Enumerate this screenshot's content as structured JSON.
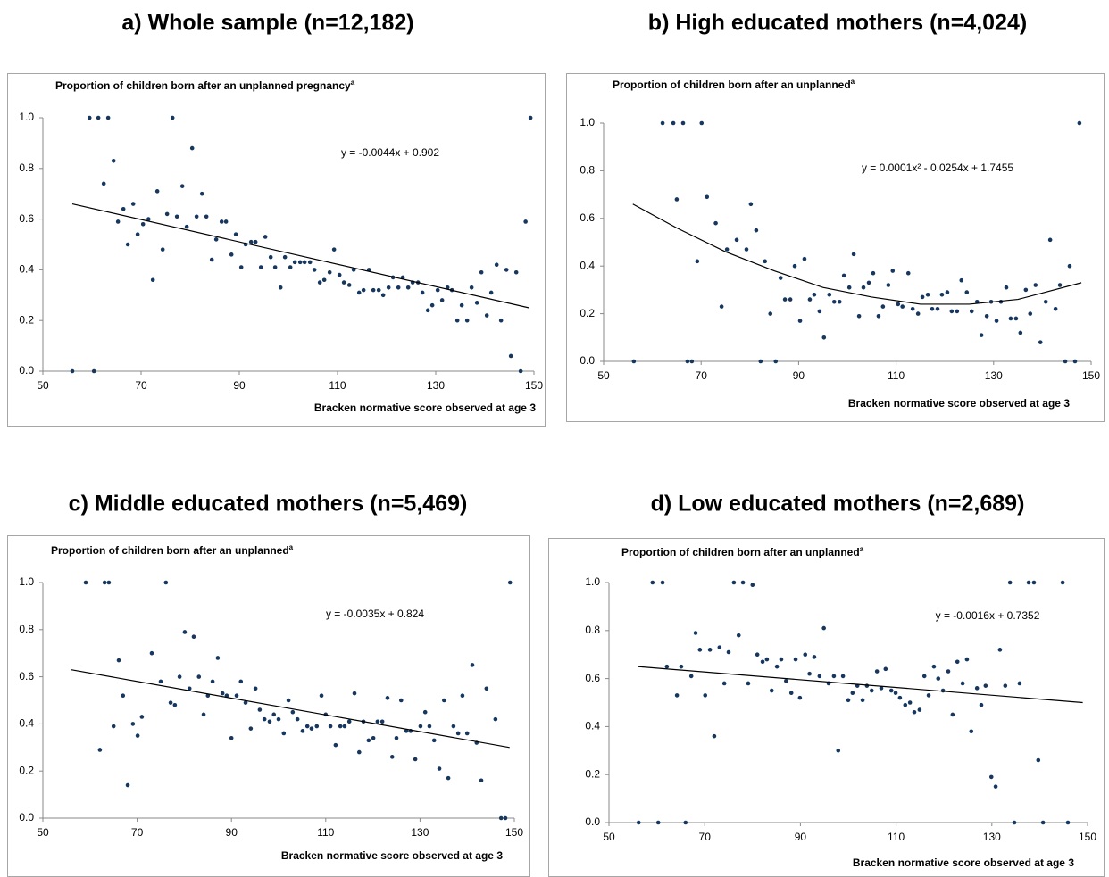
{
  "chart_data": [
    {
      "type": "scatter",
      "title": "a) Whole sample (n=12,182)",
      "y_label": "Proportion of children born after an unplanned pregnancy",
      "y_label_superscript": "a",
      "x_label": "Bracken normative score observed at age 3",
      "color": "#17375e",
      "x": [
        56,
        59.5,
        60.4,
        61.3,
        62.4,
        63.3,
        64.4,
        65.3,
        66.4,
        67.3,
        68.4,
        69.3,
        70.4,
        71.5,
        72.4,
        73.3,
        74.4,
        75.3,
        76.4,
        77.3,
        78.4,
        79.3,
        80.4,
        81.3,
        82.4,
        83.3,
        84.4,
        85.3,
        86.4,
        87.3,
        88.4,
        89.3,
        90.4,
        91.3,
        92.4,
        93.3,
        94.4,
        95.3,
        96.4,
        97.3,
        98.4,
        99.3,
        100.4,
        101.3,
        102.4,
        103.3,
        104.4,
        105.3,
        106.4,
        107.3,
        108.4,
        109.3,
        110.4,
        111.3,
        112.4,
        113.3,
        114.4,
        115.3,
        116.4,
        117.3,
        118.4,
        119.3,
        120.4,
        121.3,
        122.4,
        123.3,
        124.4,
        125.3,
        126.4,
        127.3,
        128.4,
        129.3,
        130.4,
        131.3,
        132.4,
        133.3,
        134.4,
        135.3,
        136.4,
        137.3,
        138.4,
        139.3,
        140.4,
        141.3,
        142.4,
        143.3,
        144.4,
        145.3,
        146.4,
        147.3,
        148.3,
        149.3
      ],
      "y": [
        0,
        1,
        0,
        1,
        0.74,
        1,
        0.83,
        0.59,
        0.64,
        0.5,
        0.66,
        0.54,
        0.58,
        0.6,
        0.36,
        0.71,
        0.48,
        0.62,
        1,
        0.61,
        0.73,
        0.57,
        0.88,
        0.61,
        0.7,
        0.61,
        0.44,
        0.52,
        0.59,
        0.59,
        0.46,
        0.54,
        0.41,
        0.5,
        0.51,
        0.51,
        0.41,
        0.53,
        0.45,
        0.41,
        0.33,
        0.45,
        0.41,
        0.43,
        0.43,
        0.43,
        0.43,
        0.4,
        0.35,
        0.36,
        0.39,
        0.48,
        0.38,
        0.35,
        0.34,
        0.4,
        0.31,
        0.32,
        0.4,
        0.32,
        0.32,
        0.3,
        0.33,
        0.37,
        0.33,
        0.37,
        0.33,
        0.35,
        0.35,
        0.31,
        0.24,
        0.26,
        0.32,
        0.28,
        0.33,
        0.32,
        0.2,
        0.26,
        0.2,
        0.33,
        0.27,
        0.39,
        0.22,
        0.31,
        0.42,
        0.2,
        0.4,
        0.06,
        0.39,
        0,
        0.59,
        1
      ],
      "trendline": {
        "label": "y = -0.0044x + 0.902",
        "color": "#000000",
        "x": [
          56,
          149
        ],
        "y": [
          0.66,
          0.25
        ]
      },
      "xlim": [
        50,
        150
      ],
      "ylim": [
        0,
        1
      ],
      "xticks": [
        50,
        70,
        90,
        110,
        130,
        150
      ],
      "yticks": [
        {
          "value": 0,
          "label": "0.0"
        },
        0.2,
        0.4,
        0.6,
        0.8,
        {
          "value": 1,
          "label": "1.0"
        }
      ]
    },
    {
      "type": "scatter",
      "title": "b) High educated mothers (n=4,024)",
      "y_label": "Proportion of children born after an unplanned",
      "y_label_superscript": "a",
      "x_label": "Bracken normative score observed at age 3",
      "color": "#17375e",
      "x": [
        56.2,
        62.1,
        64.3,
        65,
        66.3,
        67.2,
        68.1,
        69.2,
        70.1,
        71.2,
        73,
        74.2,
        75.3,
        77.3,
        79.3,
        80.2,
        81.3,
        82.2,
        83.1,
        84.2,
        85.3,
        86.3,
        87.2,
        88.3,
        89.2,
        90.3,
        91.2,
        92.3,
        93.2,
        94.3,
        95.2,
        96.3,
        97.3,
        98.4,
        99.3,
        100.4,
        101.3,
        102.4,
        103.3,
        104.4,
        105.3,
        106.4,
        107.3,
        108.4,
        109.3,
        110.4,
        111.3,
        112.5,
        113.4,
        114.5,
        115.4,
        116.5,
        117.4,
        118.5,
        119.4,
        120.5,
        121.4,
        122.5,
        123.4,
        124.5,
        125.5,
        126.6,
        127.5,
        128.6,
        129.5,
        130.6,
        131.5,
        132.6,
        133.5,
        134.6,
        135.5,
        136.6,
        137.5,
        138.6,
        139.6,
        140.7,
        141.6,
        142.7,
        143.6,
        144.7,
        145.6,
        146.7,
        147.6
      ],
      "y": [
        0,
        1,
        1,
        0.68,
        1,
        0,
        0,
        0.42,
        1,
        0.69,
        0.58,
        0.23,
        0.47,
        0.51,
        0.47,
        0.66,
        0.55,
        0,
        0.42,
        0.2,
        0,
        0.35,
        0.26,
        0.26,
        0.4,
        0.17,
        0.43,
        0.26,
        0.28,
        0.21,
        0.1,
        0.28,
        0.25,
        0.25,
        0.36,
        0.31,
        0.45,
        0.19,
        0.31,
        0.33,
        0.37,
        0.19,
        0.23,
        0.32,
        0.38,
        0.24,
        0.23,
        0.37,
        0.22,
        0.2,
        0.27,
        0.28,
        0.22,
        0.22,
        0.28,
        0.29,
        0.21,
        0.21,
        0.34,
        0.29,
        0.21,
        0.25,
        0.11,
        0.19,
        0.25,
        0.17,
        0.25,
        0.31,
        0.18,
        0.18,
        0.12,
        0.3,
        0.2,
        0.32,
        0.08,
        0.25,
        0.51,
        0.22,
        0.32,
        0,
        0.4,
        0,
        1
      ],
      "trendline": {
        "label": "y = 0.0001x² - 0.0254x + 1.7455",
        "color": "#000000",
        "x": [
          56,
          65,
          75,
          85,
          95,
          105,
          115,
          125,
          135,
          148
        ],
        "y": [
          0.66,
          0.56,
          0.46,
          0.38,
          0.31,
          0.27,
          0.24,
          0.24,
          0.26,
          0.33
        ]
      },
      "xlim": [
        50,
        150
      ],
      "ylim": [
        0,
        1
      ],
      "xticks": [
        50,
        70,
        90,
        110,
        130,
        150
      ],
      "yticks": [
        {
          "value": 0,
          "label": "0.0"
        },
        0.2,
        0.4,
        0.6,
        0.8,
        {
          "value": 1,
          "label": "1.0"
        }
      ]
    },
    {
      "type": "scatter",
      "title": "c) Middle educated mothers (n=5,469)",
      "y_label": "Proportion of children born after an unplanned",
      "y_label_superscript": "a",
      "x_label": "Bracken normative score observed at age 3",
      "color": "#17375e",
      "x": [
        59.1,
        62.1,
        63.1,
        64,
        65,
        66.1,
        67,
        68,
        69.1,
        70.1,
        71,
        73.1,
        75,
        76.1,
        77.1,
        78,
        79,
        80.1,
        81.1,
        82,
        83.1,
        84.1,
        85,
        86,
        87.1,
        88.1,
        89,
        90,
        91.1,
        92,
        93,
        94.1,
        95.1,
        96,
        97,
        98.1,
        99,
        100,
        101.1,
        102.1,
        103,
        104,
        105.1,
        106.1,
        107,
        108.1,
        109.1,
        110,
        111,
        112.1,
        113.1,
        114,
        115,
        116.1,
        117.1,
        118,
        119.1,
        120.1,
        121,
        122,
        123.1,
        124.1,
        125,
        126,
        127.1,
        128,
        129,
        130.1,
        131.1,
        132,
        133,
        134.1,
        135.1,
        136,
        137.1,
        138.1,
        139,
        140,
        141.1,
        142,
        143,
        144.1,
        146,
        147.2,
        148.1,
        149.1
      ],
      "y": [
        1,
        0.29,
        1,
        1,
        0.39,
        0.67,
        0.52,
        0.14,
        0.4,
        0.35,
        0.43,
        0.7,
        0.58,
        1,
        0.49,
        0.48,
        0.6,
        0.79,
        0.55,
        0.77,
        0.6,
        0.44,
        0.52,
        0.58,
        0.68,
        0.53,
        0.52,
        0.34,
        0.52,
        0.58,
        0.49,
        0.38,
        0.55,
        0.46,
        0.42,
        0.41,
        0.44,
        0.42,
        0.36,
        0.5,
        0.45,
        0.42,
        0.37,
        0.39,
        0.38,
        0.39,
        0.52,
        0.44,
        0.39,
        0.31,
        0.39,
        0.39,
        0.41,
        0.53,
        0.28,
        0.41,
        0.33,
        0.34,
        0.41,
        0.41,
        0.51,
        0.26,
        0.34,
        0.5,
        0.37,
        0.37,
        0.25,
        0.39,
        0.45,
        0.39,
        0.33,
        0.21,
        0.5,
        0.17,
        0.39,
        0.36,
        0.52,
        0.36,
        0.65,
        0.32,
        0.16,
        0.55,
        0.42,
        0,
        0,
        1
      ],
      "trendline": {
        "label": "y = -0.0035x + 0.824",
        "color": "#000000",
        "x": [
          56,
          149
        ],
        "y": [
          0.63,
          0.3
        ]
      },
      "xlim": [
        50,
        150
      ],
      "ylim": [
        0,
        1
      ],
      "xticks": [
        50,
        70,
        90,
        110,
        130,
        150
      ],
      "yticks": [
        {
          "value": 0,
          "label": "0.0"
        },
        0.2,
        0.4,
        0.6,
        0.8,
        {
          "value": 1,
          "label": "1.0"
        }
      ]
    },
    {
      "type": "scatter",
      "title": "d) Low educated mothers (n=2,689)",
      "y_label": "Proportion of children born after an unplanned",
      "y_label_superscript": "a",
      "x_label": "Bracken normative score observed at age 3",
      "color": "#17375e",
      "x": [
        56.2,
        59.1,
        60.3,
        61.2,
        62.1,
        64.2,
        65.1,
        66,
        67.2,
        68.1,
        69,
        70.1,
        71.1,
        72,
        73.1,
        74.1,
        75,
        76.1,
        77.1,
        78,
        79.1,
        80,
        81,
        82.1,
        83,
        84,
        85.1,
        86,
        87,
        88.1,
        89,
        89.9,
        91,
        91.9,
        92.9,
        94,
        94.9,
        95.9,
        97,
        97.9,
        98.9,
        100,
        100.9,
        101.9,
        103,
        103.9,
        104.9,
        106,
        106.9,
        107.8,
        109,
        109.9,
        110.8,
        111.9,
        112.9,
        113.8,
        114.9,
        115.9,
        116.8,
        117.9,
        118.8,
        119.8,
        120.9,
        121.8,
        122.8,
        123.9,
        124.8,
        125.7,
        126.9,
        127.8,
        128.7,
        129.9,
        130.8,
        131.7,
        132.8,
        133.8,
        134.7,
        135.8,
        137.7,
        138.8,
        139.7,
        140.7,
        144.8,
        145.9
      ],
      "y": [
        0,
        1,
        0,
        1,
        0.65,
        0.53,
        0.65,
        0,
        0.61,
        0.79,
        0.72,
        0.53,
        0.72,
        0.36,
        0.73,
        0.58,
        0.71,
        1,
        0.78,
        1,
        0.58,
        0.99,
        0.7,
        0.67,
        0.68,
        0.55,
        0.65,
        0.68,
        0.59,
        0.54,
        0.68,
        0.52,
        0.7,
        0.62,
        0.69,
        0.61,
        0.81,
        0.58,
        0.61,
        0.3,
        0.61,
        0.51,
        0.54,
        0.57,
        0.51,
        0.57,
        0.55,
        0.63,
        0.56,
        0.64,
        0.55,
        0.54,
        0.52,
        0.49,
        0.5,
        0.46,
        0.47,
        0.61,
        0.53,
        0.65,
        0.6,
        0.55,
        0.63,
        0.45,
        0.67,
        0.58,
        0.68,
        0.38,
        0.56,
        0.49,
        0.57,
        0.19,
        0.15,
        0.72,
        0.57,
        1,
        0,
        0.58,
        1,
        1,
        0.26,
        0,
        1,
        0
      ],
      "trendline": {
        "label": "y = -0.0016x + 0.7352",
        "color": "#000000",
        "x": [
          56,
          149
        ],
        "y": [
          0.65,
          0.5
        ]
      },
      "xlim": [
        50,
        150
      ],
      "ylim": [
        0,
        1
      ],
      "xticks": [
        50,
        70,
        90,
        110,
        130,
        150
      ],
      "yticks": [
        {
          "value": 0,
          "label": "0.0"
        },
        0.2,
        0.4,
        0.6,
        0.8,
        {
          "value": 1,
          "label": "1.0"
        }
      ]
    }
  ]
}
